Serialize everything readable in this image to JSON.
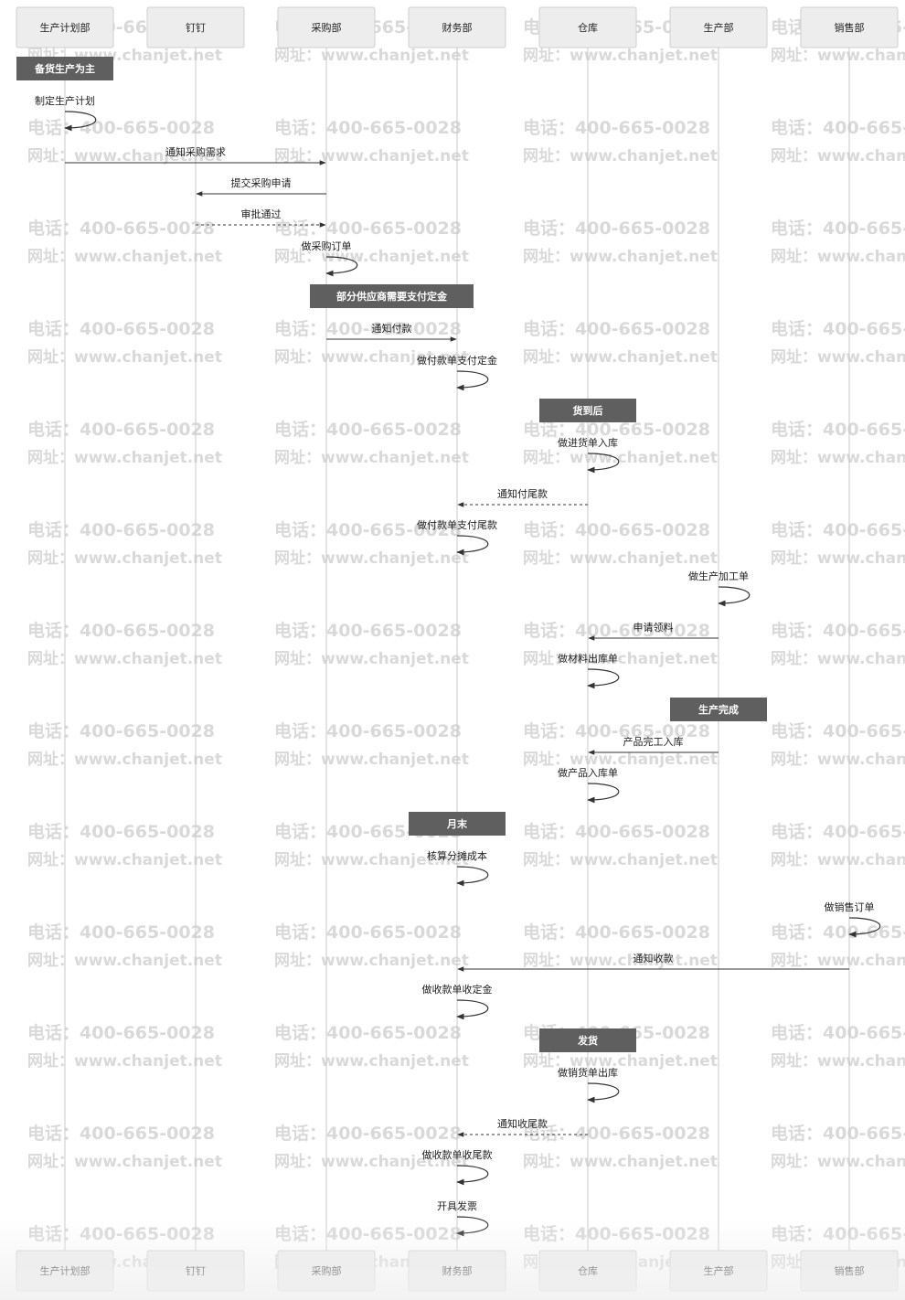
{
  "diagram": {
    "participants": [
      {
        "id": "plan",
        "label": "生产计划部"
      },
      {
        "id": "dingding",
        "label": "钉钉"
      },
      {
        "id": "purchase",
        "label": "采购部"
      },
      {
        "id": "finance",
        "label": "财务部"
      },
      {
        "id": "warehouse",
        "label": "仓库"
      },
      {
        "id": "production",
        "label": "生产部"
      },
      {
        "id": "sales",
        "label": "销售部"
      }
    ],
    "watermark": {
      "phone": "电话：400-665-0028",
      "site": "网址：www.chanjet.net"
    },
    "steps": [
      {
        "kind": "note",
        "at": "plan",
        "text": "备货生产为主"
      },
      {
        "kind": "self",
        "at": "plan",
        "text": "制定生产计划"
      },
      {
        "kind": "msg",
        "from": "plan",
        "to": "purchase",
        "text": "通知采购需求",
        "style": "solid"
      },
      {
        "kind": "msg",
        "from": "purchase",
        "to": "dingding",
        "text": "提交采购申请",
        "style": "solid"
      },
      {
        "kind": "msg",
        "from": "dingding",
        "to": "purchase",
        "text": "审批通过",
        "style": "dashed"
      },
      {
        "kind": "self",
        "at": "purchase",
        "text": "做采购订单"
      },
      {
        "kind": "note",
        "at": "purchase",
        "span": "finance",
        "text": "部分供应商需要支付定金"
      },
      {
        "kind": "msg",
        "from": "purchase",
        "to": "finance",
        "text": "通知付款",
        "style": "solid"
      },
      {
        "kind": "self",
        "at": "finance",
        "text": "做付款单支付定金"
      },
      {
        "kind": "note",
        "at": "warehouse",
        "text": "货到后"
      },
      {
        "kind": "self",
        "at": "warehouse",
        "text": "做进货单入库"
      },
      {
        "kind": "msg",
        "from": "warehouse",
        "to": "finance",
        "text": "通知付尾款",
        "style": "dashed"
      },
      {
        "kind": "self",
        "at": "finance",
        "text": "做付款单支付尾款"
      },
      {
        "kind": "self",
        "at": "production",
        "text": "做生产加工单"
      },
      {
        "kind": "msg",
        "from": "production",
        "to": "warehouse",
        "text": "申请领料",
        "style": "solid"
      },
      {
        "kind": "self",
        "at": "warehouse",
        "text": "做材料出库单"
      },
      {
        "kind": "note",
        "at": "production",
        "text": "生产完成"
      },
      {
        "kind": "msg",
        "from": "production",
        "to": "warehouse",
        "text": "产品完工入库",
        "style": "solid"
      },
      {
        "kind": "self",
        "at": "warehouse",
        "text": "做产品入库单"
      },
      {
        "kind": "note",
        "at": "finance",
        "text": "月末"
      },
      {
        "kind": "self",
        "at": "finance",
        "text": "核算分摊成本"
      },
      {
        "kind": "self",
        "at": "sales",
        "text": "做销售订单"
      },
      {
        "kind": "msg",
        "from": "sales",
        "to": "finance",
        "text": "通知收款",
        "style": "solid"
      },
      {
        "kind": "self",
        "at": "finance",
        "text": "做收款单收定金"
      },
      {
        "kind": "note",
        "at": "warehouse",
        "text": "发货"
      },
      {
        "kind": "self",
        "at": "warehouse",
        "text": "做销货单出库"
      },
      {
        "kind": "msg",
        "from": "warehouse",
        "to": "finance",
        "text": "通知收尾款",
        "style": "dashed"
      },
      {
        "kind": "self",
        "at": "finance",
        "text": "做收款单收尾款"
      },
      {
        "kind": "self",
        "at": "finance",
        "text": "开具发票"
      }
    ],
    "colors": {
      "box_fill": "#ededed",
      "box_stroke": "#cfcfcf",
      "lifeline": "#c8c8c8",
      "arrow": "#333333",
      "note_fill": "#5f5f5f",
      "note_text": "#ffffff",
      "watermark": "#d9d9d9"
    }
  }
}
